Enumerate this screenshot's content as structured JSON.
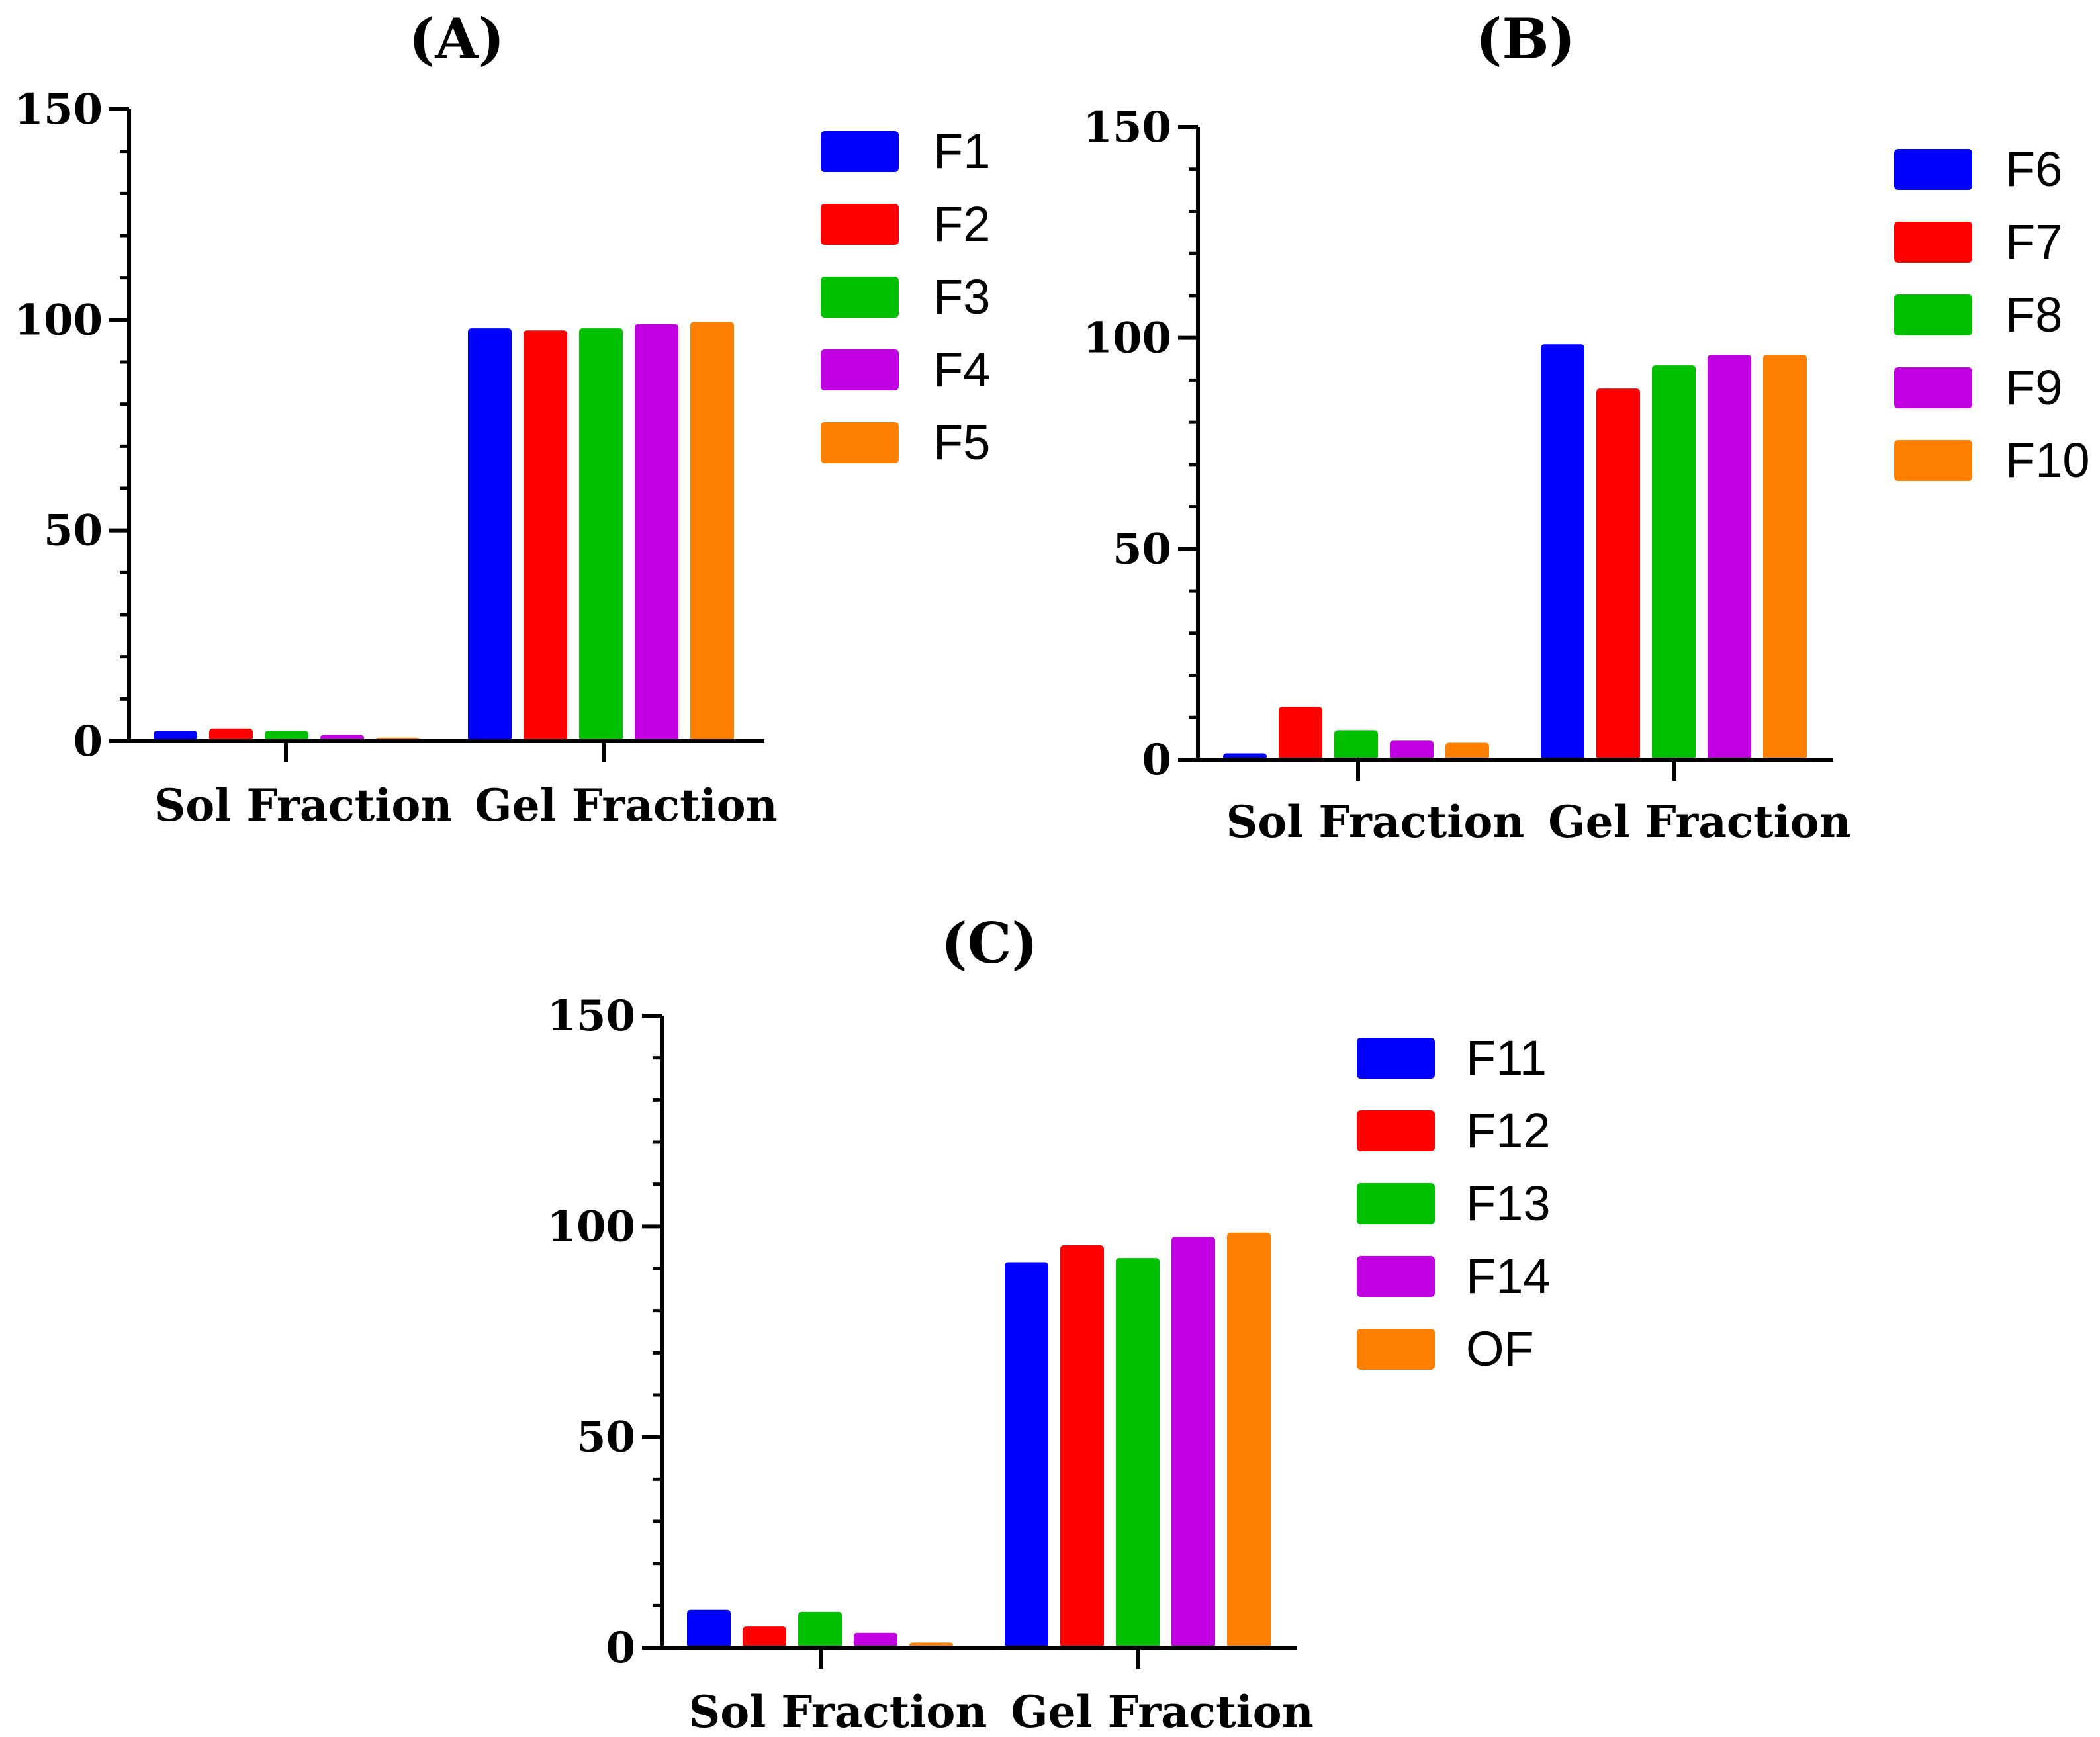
{
  "chart_data": [
    {
      "type": "bar",
      "title": "(A)",
      "categories": [
        "Sol Fraction",
        "Gel Fraction"
      ],
      "ylim": [
        0,
        150
      ],
      "yticks": [
        0,
        50,
        100,
        150
      ],
      "xlabel": "",
      "ylabel": "",
      "legend_position": "top-right",
      "series": [
        {
          "name": "F1",
          "color": "#0000ff",
          "values": [
            2.5,
            98.0
          ]
        },
        {
          "name": "F2",
          "color": "#ff0000",
          "values": [
            3.0,
            97.5
          ]
        },
        {
          "name": "F3",
          "color": "#00c000",
          "values": [
            2.5,
            98.0
          ]
        },
        {
          "name": "F4",
          "color": "#c000e0",
          "values": [
            1.5,
            99.0
          ]
        },
        {
          "name": "F5",
          "color": "#ff8000",
          "values": [
            0.8,
            99.5
          ]
        }
      ]
    },
    {
      "type": "bar",
      "title": "(B)",
      "categories": [
        "Sol Fraction",
        "Gel Fraction"
      ],
      "ylim": [
        0,
        150
      ],
      "yticks": [
        0,
        50,
        100,
        150
      ],
      "xlabel": "",
      "ylabel": "",
      "legend_position": "top-right",
      "series": [
        {
          "name": "F6",
          "color": "#0000ff",
          "values": [
            1.5,
            98.5
          ]
        },
        {
          "name": "F7",
          "color": "#ff0000",
          "values": [
            12.5,
            88.0
          ]
        },
        {
          "name": "F8",
          "color": "#00c000",
          "values": [
            7.0,
            93.5
          ]
        },
        {
          "name": "F9",
          "color": "#c000e0",
          "values": [
            4.5,
            96.0
          ]
        },
        {
          "name": "F10",
          "color": "#ff8000",
          "values": [
            4.0,
            96.0
          ]
        }
      ]
    },
    {
      "type": "bar",
      "title": "(C)",
      "categories": [
        "Sol Fraction",
        "Gel Fraction"
      ],
      "ylim": [
        0,
        150
      ],
      "yticks": [
        0,
        50,
        100,
        150
      ],
      "xlabel": "",
      "ylabel": "",
      "legend_position": "top-right",
      "series": [
        {
          "name": "F11",
          "color": "#0000ff",
          "values": [
            9.0,
            91.5
          ]
        },
        {
          "name": "F12",
          "color": "#ff0000",
          "values": [
            5.0,
            95.5
          ]
        },
        {
          "name": "F13",
          "color": "#00c000",
          "values": [
            8.5,
            92.5
          ]
        },
        {
          "name": "F14",
          "color": "#c000e0",
          "values": [
            3.5,
            97.5
          ]
        },
        {
          "name": "OF",
          "color": "#ff8000",
          "values": [
            1.2,
            98.5
          ]
        }
      ]
    }
  ]
}
